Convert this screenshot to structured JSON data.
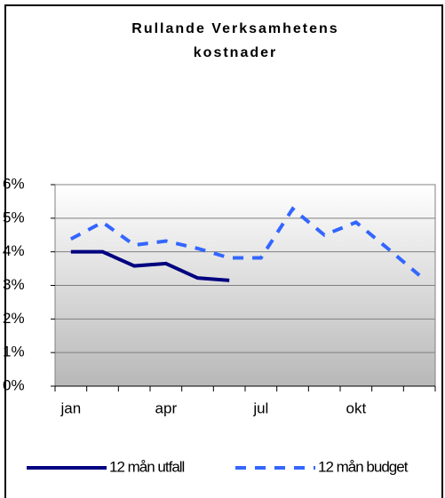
{
  "chart_data": {
    "type": "line",
    "title": [
      "Rullande Verksamhetens",
      "kostnader"
    ],
    "categories": [
      "jan",
      null,
      null,
      "apr",
      null,
      null,
      "jul",
      null,
      null,
      "okt",
      null,
      null
    ],
    "series": [
      {
        "name": "12 mån utfall",
        "color": "#000080",
        "dashed": false,
        "values": [
          4.0,
          4.0,
          3.58,
          3.65,
          3.22,
          3.15,
          null,
          null,
          null,
          null,
          null,
          null
        ]
      },
      {
        "name": "12 mån budget",
        "color": "#3366ff",
        "dashed": true,
        "values": [
          4.38,
          4.88,
          4.2,
          4.32,
          4.1,
          3.82,
          3.82,
          5.28,
          4.5,
          4.88,
          4.1,
          3.3
        ]
      }
    ],
    "ylim": [
      0,
      6
    ],
    "yticks": [
      {
        "value": 0,
        "label": "0%"
      },
      {
        "value": 1,
        "label": "1%"
      },
      {
        "value": 2,
        "label": "2%"
      },
      {
        "value": 3,
        "label": "3%"
      },
      {
        "value": 4,
        "label": "4%"
      },
      {
        "value": 5,
        "label": "5%"
      },
      {
        "value": 6,
        "label": "6%"
      }
    ],
    "grid": true,
    "legend": "bottom"
  }
}
